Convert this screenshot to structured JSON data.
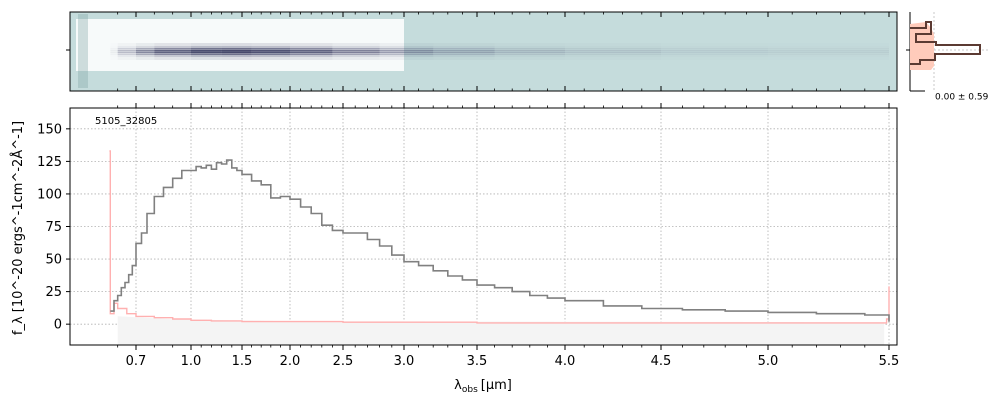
{
  "chart_data": {
    "type": "line",
    "object_label": "5105_32805",
    "xlabel_main": "λ",
    "xlabel_sub": "obs",
    "xlabel_unit": "[μm]",
    "ylabel": "f_λ [10^-20 ergs^-1cm^-2Å^-1]",
    "ylim": [
      -16,
      166
    ],
    "yticks": [
      0,
      25,
      50,
      75,
      100,
      125,
      150
    ],
    "ytick_labels": [
      "0",
      "25",
      "50",
      "75",
      "100",
      "125",
      "150"
    ],
    "xscale": "nonlinear (approx. sqrt) wavelength axis",
    "xlim": [
      0.55,
      5.53
    ],
    "xticks": [
      0.7,
      1.0,
      1.5,
      2.0,
      2.5,
      3.0,
      3.5,
      4.0,
      4.5,
      5.0,
      5.5
    ],
    "xtick_labels": [
      "0.7",
      "1.0",
      "1.5",
      "2.0",
      "2.5",
      "3.0",
      "3.5",
      "4.0",
      "4.5",
      "5.0",
      "5.5"
    ],
    "grid": true,
    "colors": {
      "flux": "#808080",
      "error": "#ffb0b0",
      "model_fill": "#f4f4f4",
      "twod_bg": "#c5dcdc",
      "twod_band": "#ffffff",
      "twod_trace": "#3c3e63",
      "profile_line": "#5b3a32",
      "profile_fill": "#ffcbbb"
    },
    "series": [
      {
        "x": [
          0.56,
          0.58,
          0.6,
          0.62,
          0.64,
          0.66,
          0.68,
          0.7,
          0.73,
          0.76,
          0.8,
          0.85,
          0.9,
          0.95,
          1.0,
          1.05,
          1.1,
          1.15,
          1.2,
          1.25,
          1.3,
          1.35,
          1.4,
          1.45,
          1.5,
          1.6,
          1.7,
          1.8,
          1.9,
          2.0,
          2.1,
          2.2,
          2.3,
          2.4,
          2.5,
          2.6,
          2.7,
          2.8,
          2.9,
          3.0,
          3.1,
          3.2,
          3.3,
          3.4,
          3.5,
          3.6,
          3.7,
          3.8,
          3.9,
          4.0,
          4.2,
          4.4,
          4.6,
          4.8,
          5.0,
          5.2,
          5.4,
          5.48,
          5.5
        ],
        "values": [
          10,
          18,
          22,
          28,
          32,
          38,
          45,
          62,
          70,
          85,
          98,
          105,
          112,
          118,
          118,
          121,
          120,
          122,
          119,
          124,
          123,
          126,
          120,
          118,
          115,
          110,
          107,
          97,
          98,
          96,
          90,
          85,
          76,
          72,
          70,
          70,
          65,
          60,
          53,
          48,
          45,
          41,
          37,
          34,
          30,
          28,
          25,
          22,
          20,
          18,
          14,
          12,
          11,
          10,
          9,
          8,
          7,
          7,
          2
        ]
      },
      {
        "x": [
          0.555,
          0.56,
          0.58,
          0.6,
          0.65,
          0.7,
          0.8,
          0.9,
          1.0,
          1.2,
          1.5,
          2.0,
          2.5,
          3.0,
          3.5,
          4.0,
          4.5,
          5.0,
          5.4,
          5.49,
          5.5
        ],
        "values": [
          133,
          8,
          16,
          12,
          8,
          6,
          5,
          4,
          3,
          2.5,
          2,
          2,
          1.5,
          1.5,
          1,
          1,
          1,
          1,
          1,
          4,
          29
        ]
      }
    ],
    "inset_label": "0.00 ± 0.59"
  }
}
